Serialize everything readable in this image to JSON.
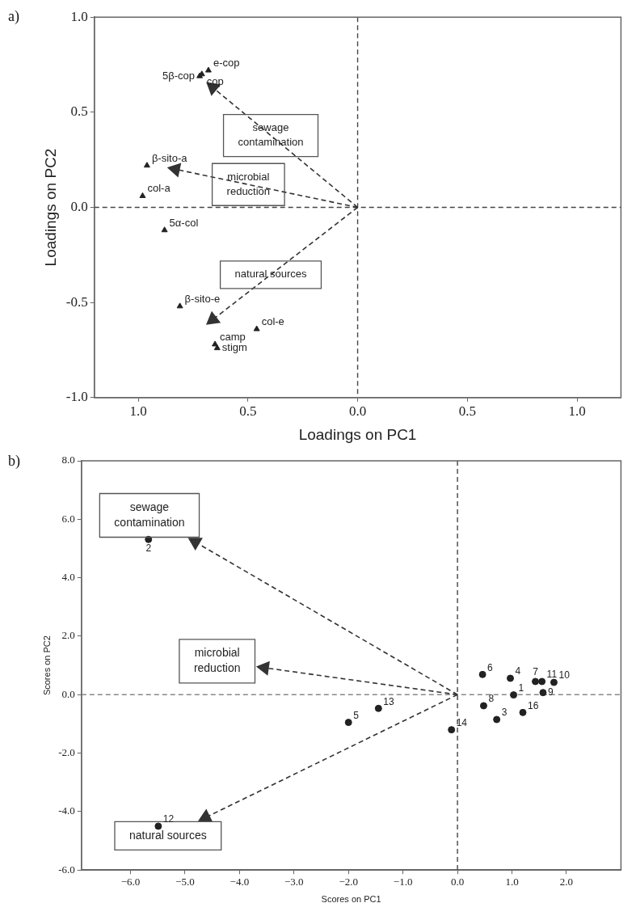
{
  "chart_data": [
    {
      "type": "scatter",
      "annotations": [
        "a)"
      ],
      "xlabel": "Loadings on PC1",
      "ylabel": "Loadings on PC2",
      "xlim": [
        1.2,
        -1.2
      ],
      "ylim": [
        -1,
        1
      ],
      "xticks": [
        {
          "value": 1,
          "label": "1.0"
        },
        {
          "value": 0.5,
          "label": "0.5"
        },
        {
          "value": 0,
          "label": "0.0"
        },
        {
          "value": -0.5,
          "label": "0.5"
        },
        {
          "value": -1,
          "label": "1.0"
        }
      ],
      "yticks": [
        {
          "value": 1,
          "label": "1.0"
        },
        {
          "value": 0.5,
          "label": "0.5"
        },
        {
          "value": 0,
          "label": "0.0"
        },
        {
          "value": -0.5,
          "label": "-0.5"
        },
        {
          "value": -1,
          "label": "-1.0"
        }
      ],
      "marker": "triangle",
      "grid": false,
      "legend": false,
      "ref_lines": [
        {
          "axis": "x",
          "value": 0,
          "line_style": "dashed",
          "color": "#444444"
        },
        {
          "axis": "y",
          "value": 0,
          "line_style": "dashed",
          "color": "#444444"
        }
      ],
      "series": [
        {
          "name": "cop",
          "color": "#222222",
          "x": [
            0.71
          ],
          "values": [
            0.7
          ]
        },
        {
          "name": "e-cop",
          "color": "#222222",
          "x": [
            0.68
          ],
          "values": [
            0.72
          ]
        },
        {
          "name": "5β-cop",
          "color": "#222222",
          "x": [
            0.72
          ],
          "values": [
            0.69
          ]
        },
        {
          "name": "β-sito-a",
          "color": "#222222",
          "x": [
            0.96
          ],
          "values": [
            0.22
          ]
        },
        {
          "name": "col-a",
          "color": "#222222",
          "x": [
            0.98
          ],
          "values": [
            0.06
          ]
        },
        {
          "name": "5α-col",
          "color": "#222222",
          "x": [
            0.88
          ],
          "values": [
            -0.12
          ]
        },
        {
          "name": "β-sito-e",
          "color": "#222222",
          "x": [
            0.81
          ],
          "values": [
            -0.52
          ]
        },
        {
          "name": "col-e",
          "color": "#222222",
          "x": [
            0.46
          ],
          "values": [
            -0.64
          ]
        },
        {
          "name": "camp",
          "color": "#222222",
          "x": [
            0.65
          ],
          "values": [
            -0.72
          ]
        },
        {
          "name": "stigm",
          "color": "#222222",
          "x": [
            0.64
          ],
          "values": [
            -0.74
          ]
        },
        {
          "name": "sewage\ncontamination",
          "type": "line",
          "line_style": "dashed",
          "color": "#333333",
          "x": [
            0,
            0.66
          ],
          "values": [
            0,
            0.63
          ]
        },
        {
          "name": "microbial\nreduction",
          "type": "line",
          "line_style": "dashed",
          "color": "#333333",
          "x": [
            0,
            0.83
          ],
          "values": [
            0,
            0.2
          ]
        },
        {
          "name": "natural sources",
          "type": "line",
          "line_style": "dashed",
          "color": "#333333",
          "x": [
            0,
            0.66
          ],
          "values": [
            0,
            -0.59
          ]
        }
      ]
    },
    {
      "type": "scatter",
      "annotations": [
        "b)"
      ],
      "xlabel": "Scores on PC1",
      "ylabel": "Scores on PC2",
      "xlim": [
        -6.9,
        3
      ],
      "ylim": [
        -6,
        8
      ],
      "xticks": [
        {
          "value": -6,
          "label": "−6.0"
        },
        {
          "value": -5,
          "label": "−5.0"
        },
        {
          "value": -4,
          "label": "−4.0"
        },
        {
          "value": -3,
          "label": "−3.0"
        },
        {
          "value": -2,
          "label": "−2.0"
        },
        {
          "value": -1,
          "label": "−1.0"
        },
        {
          "value": 0,
          "label": "0.0"
        },
        {
          "value": 1,
          "label": "1.0"
        },
        {
          "value": 2,
          "label": "2.0"
        }
      ],
      "yticks": [
        {
          "value": 8,
          "label": "8.0"
        },
        {
          "value": 6,
          "label": "6.0"
        },
        {
          "value": 4,
          "label": "4.0"
        },
        {
          "value": 2,
          "label": "2.0"
        },
        {
          "value": 0,
          "label": "0.0"
        },
        {
          "value": -2,
          "label": "-2.0"
        },
        {
          "value": -4,
          "label": "-4.0"
        },
        {
          "value": -6,
          "label": "-6.0"
        }
      ],
      "marker": "circle",
      "grid": false,
      "legend": false,
      "ref_lines": [
        {
          "axis": "x",
          "value": 0,
          "line_style": "dashed",
          "color": "#444444"
        },
        {
          "axis": "y",
          "value": 0,
          "line_style": "dashed",
          "color": "#888888"
        }
      ],
      "series": [
        {
          "name": "2",
          "color": "#222222",
          "x": [
            -5.67
          ],
          "values": [
            5.31
          ]
        },
        {
          "name": "12",
          "color": "#222222",
          "x": [
            -5.49
          ],
          "values": [
            -4.5
          ]
        },
        {
          "name": "5",
          "color": "#222222",
          "x": [
            -2
          ],
          "values": [
            -0.95
          ]
        },
        {
          "name": "13",
          "color": "#222222",
          "x": [
            -1.45
          ],
          "values": [
            -0.47
          ]
        },
        {
          "name": "14",
          "color": "#222222",
          "x": [
            -0.11
          ],
          "values": [
            -1.2
          ]
        },
        {
          "name": "6",
          "color": "#222222",
          "x": [
            0.46
          ],
          "values": [
            0.69
          ]
        },
        {
          "name": "8",
          "color": "#222222",
          "x": [
            0.48
          ],
          "values": [
            -0.38
          ]
        },
        {
          "name": "3",
          "color": "#222222",
          "x": [
            0.72
          ],
          "values": [
            -0.85
          ]
        },
        {
          "name": "4",
          "color": "#222222",
          "x": [
            0.97
          ],
          "values": [
            0.56
          ]
        },
        {
          "name": "1",
          "color": "#222222",
          "x": [
            1.03
          ],
          "values": [
            -0.01
          ]
        },
        {
          "name": "16",
          "color": "#222222",
          "x": [
            1.2
          ],
          "values": [
            -0.61
          ]
        },
        {
          "name": "7",
          "color": "#222222",
          "x": [
            1.43
          ],
          "values": [
            0.45
          ]
        },
        {
          "name": "11",
          "color": "#222222",
          "x": [
            1.55
          ],
          "values": [
            0.45
          ]
        },
        {
          "name": "10",
          "color": "#222222",
          "x": [
            1.77
          ],
          "values": [
            0.42
          ]
        },
        {
          "name": "9",
          "color": "#222222",
          "x": [
            1.57
          ],
          "values": [
            0.07
          ]
        },
        {
          "name": "sewage\ncontamination",
          "type": "line",
          "line_style": "dashed",
          "color": "#333333",
          "marker": "triangle",
          "x": [
            0,
            -4.81
          ],
          "values": [
            0,
            5.22
          ]
        },
        {
          "name": "microbial\nreduction",
          "type": "line",
          "line_style": "dashed",
          "color": "#333333",
          "marker": "triangle",
          "x": [
            0,
            -3.54
          ],
          "values": [
            0,
            0.92
          ]
        },
        {
          "name": "natural sources",
          "type": "line",
          "line_style": "dashed",
          "color": "#333333",
          "marker": "triangle",
          "x": [
            0,
            -4.62
          ],
          "values": [
            0,
            -4.2
          ]
        }
      ]
    }
  ]
}
